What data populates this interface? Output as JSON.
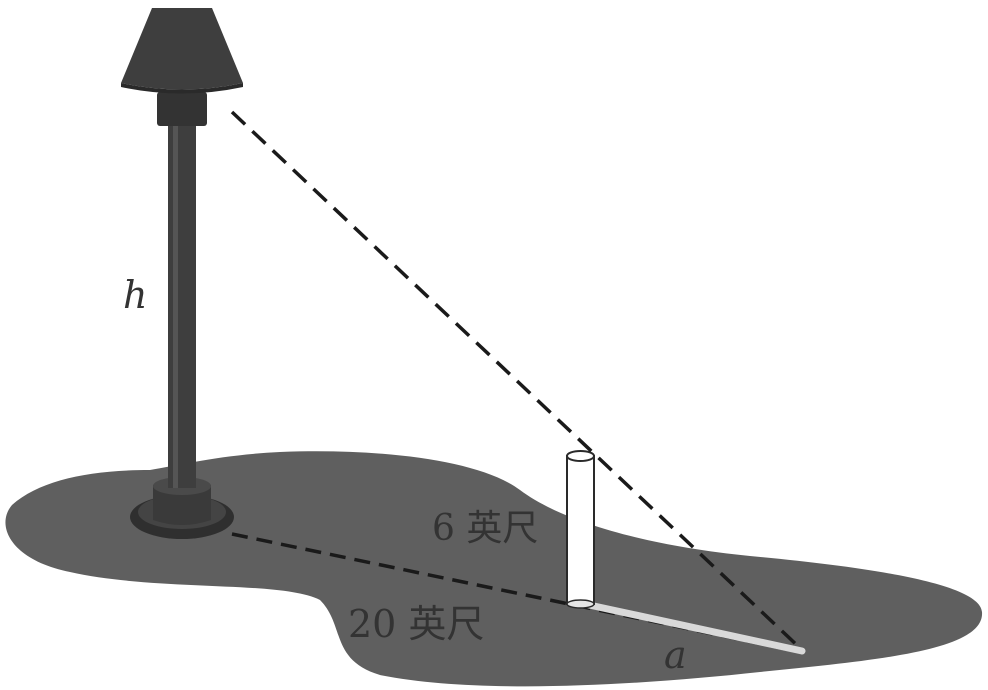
{
  "diagram": {
    "labels": {
      "lamp_height": "h",
      "post_height": "6 英尺",
      "distance": "20 英尺",
      "shadow": "a"
    },
    "colors": {
      "ground": "#5f5f5f",
      "lamp": "#3e3e3e",
      "lamp_dark": "#2a2a2a",
      "post": "#ffffff",
      "shadow": "#d9d9d9",
      "line": "#1a1a1a"
    }
  }
}
